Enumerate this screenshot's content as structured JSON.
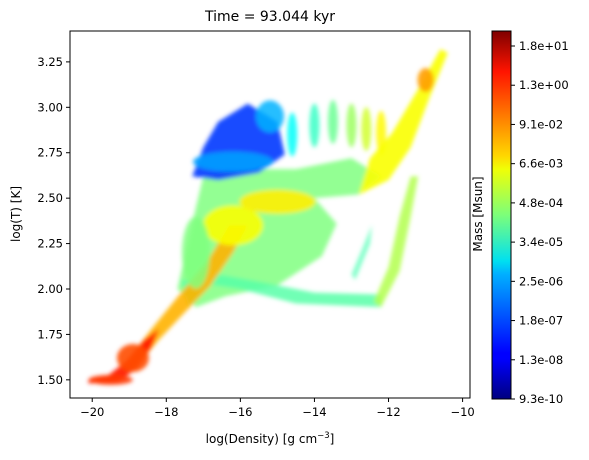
{
  "chart_data": {
    "type": "heatmap",
    "title": "Time = 93.044 kyr",
    "xlabel": "log(Density) [g cm",
    "xlabel_sup": "−3",
    "xlabel_end": "]",
    "ylabel": "log(T) [K]",
    "xlim": [
      -20.6,
      -9.8
    ],
    "ylim": [
      1.4,
      3.42
    ],
    "x_ticks": [
      -20,
      -18,
      -16,
      -14,
      -12,
      -10
    ],
    "x_tick_labels": [
      "−20",
      "−18",
      "−16",
      "−14",
      "−12",
      "−10"
    ],
    "y_ticks": [
      1.5,
      1.75,
      2.0,
      2.25,
      2.5,
      2.75,
      3.0,
      3.25
    ],
    "y_tick_labels": [
      "1.50",
      "1.75",
      "2.00",
      "2.25",
      "2.50",
      "2.75",
      "3.00",
      "3.25"
    ],
    "colormap": "jet",
    "colorbar": {
      "label": "Mass [Msun]",
      "tick_labels": [
        "9.3e-10",
        "1.3e-08",
        "1.8e-07",
        "2.5e-06",
        "3.4e-05",
        "4.8e-04",
        "6.6e-03",
        "9.1e-02",
        "1.3e+00",
        "1.8e+01"
      ]
    },
    "regions": [
      {
        "name": "cold-dense-tail",
        "x": [
          -20.1,
          -18.6
        ],
        "y": [
          1.48,
          1.75
        ],
        "level": 0.82
      },
      {
        "name": "main-ridge",
        "x": [
          -18.6,
          -16.5
        ],
        "y": [
          1.75,
          2.3
        ],
        "level": 0.66
      },
      {
        "name": "diffuse-plume",
        "x": [
          -17.6,
          -12.2
        ],
        "y": [
          2.0,
          2.85
        ],
        "level": 0.5
      },
      {
        "name": "hot-cap",
        "x": [
          -17.3,
          -15.2
        ],
        "y": [
          2.6,
          3.02
        ],
        "level": 0.15
      },
      {
        "name": "hot-dense-arm",
        "x": [
          -12.6,
          -10.3
        ],
        "y": [
          2.4,
          3.32
        ],
        "level": 0.7
      }
    ]
  }
}
